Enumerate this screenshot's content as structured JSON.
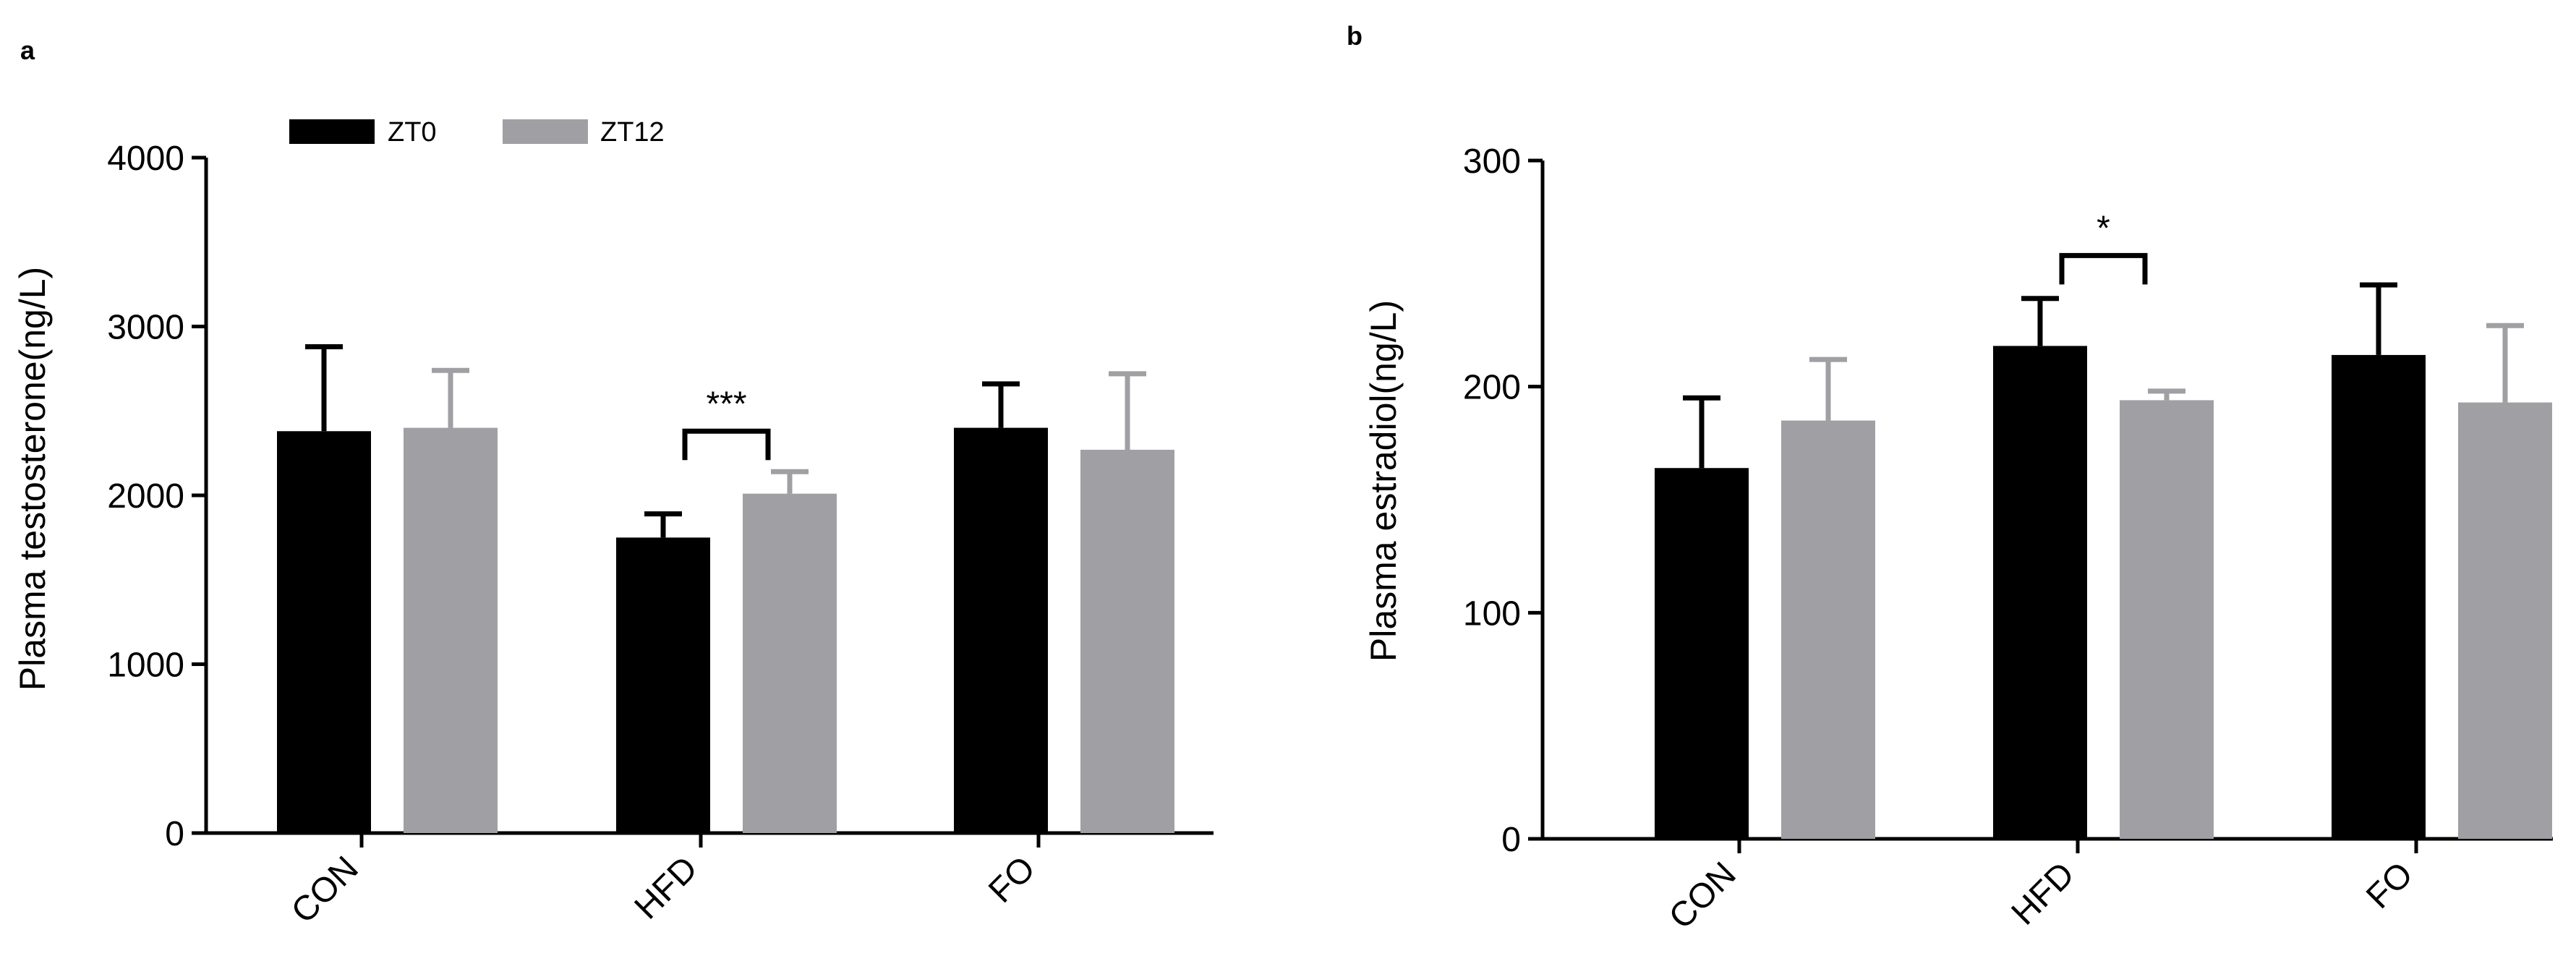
{
  "figure": {
    "legend": {
      "items": [
        {
          "name": "ZT0",
          "color": "#000000"
        },
        {
          "name": "ZT12",
          "color": "#a0a0a4"
        }
      ]
    }
  },
  "chart_data": [
    {
      "panel_label": "a",
      "type": "bar",
      "title": "",
      "xlabel": "",
      "ylabel": "Plasma testosterone(ng/L)",
      "ylim": [
        0,
        4000
      ],
      "yticks": [
        0,
        1000,
        2000,
        3000,
        4000
      ],
      "categories": [
        "CON",
        "HFD",
        "FO"
      ],
      "series": [
        {
          "name": "ZT0",
          "color": "#000000",
          "values": [
            2380,
            1750,
            2400
          ],
          "errors": [
            500,
            140,
            260
          ]
        },
        {
          "name": "ZT12",
          "color": "#a0a0a4",
          "values": [
            2400,
            2010,
            2270
          ],
          "errors": [
            340,
            130,
            450
          ]
        }
      ],
      "annotations": [
        {
          "category": "HFD",
          "text": "***",
          "y": 2380
        }
      ]
    },
    {
      "panel_label": "b",
      "type": "bar",
      "title": "",
      "xlabel": "",
      "ylabel": "Plasma estradiol(ng/L)",
      "ylim": [
        0,
        300
      ],
      "yticks": [
        0,
        100,
        200,
        300
      ],
      "categories": [
        "CON",
        "HFD",
        "FO"
      ],
      "series": [
        {
          "name": "ZT0",
          "color": "#000000",
          "values": [
            164,
            218,
            214
          ],
          "errors": [
            31,
            21,
            31
          ]
        },
        {
          "name": "ZT12",
          "color": "#a0a0a4",
          "values": [
            185,
            194,
            193
          ],
          "errors": [
            27,
            4,
            34
          ]
        }
      ],
      "annotations": [
        {
          "category": "HFD",
          "text": "*",
          "y": 258
        }
      ]
    }
  ]
}
